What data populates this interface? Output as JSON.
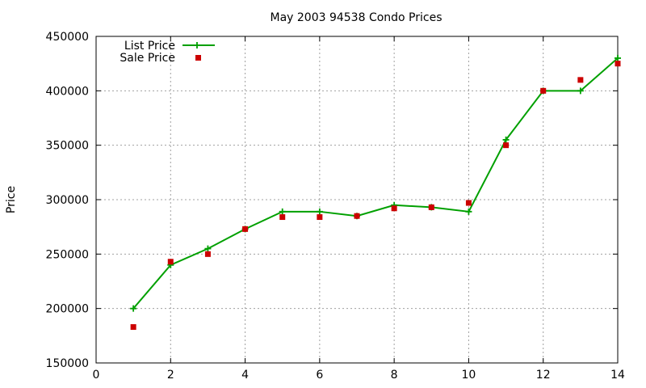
{
  "chart_data": {
    "type": "line",
    "title": "May 2003 94538 Condo Prices",
    "xlabel": "",
    "ylabel": "Price",
    "xlim": [
      0,
      14
    ],
    "ylim": [
      150000,
      450000
    ],
    "xticks": [
      "0",
      "2",
      "4",
      "6",
      "8",
      "10",
      "12",
      "14"
    ],
    "yticks": [
      "150000",
      "200000",
      "250000",
      "300000",
      "350000",
      "400000",
      "450000"
    ],
    "grid": true,
    "legend_position": "top-left",
    "series": [
      {
        "name": "List Price",
        "style": "linespoints",
        "marker": "plus",
        "color": "#00a000",
        "x": [
          1,
          2,
          3,
          4,
          5,
          6,
          7,
          8,
          9,
          10,
          11,
          12,
          13,
          14
        ],
        "y": [
          200000,
          240000,
          255000,
          273000,
          289000,
          289000,
          285000,
          295000,
          293000,
          289000,
          355000,
          400000,
          400000,
          430000
        ]
      },
      {
        "name": "Sale Price",
        "style": "points",
        "marker": "square",
        "color": "#cc0000",
        "x": [
          1,
          2,
          3,
          4,
          5,
          6,
          7,
          8,
          9,
          10,
          11,
          12,
          13,
          14
        ],
        "y": [
          183000,
          243000,
          250000,
          273000,
          284000,
          284000,
          285000,
          292000,
          293000,
          297000,
          350000,
          400000,
          410000,
          425000
        ]
      }
    ]
  }
}
